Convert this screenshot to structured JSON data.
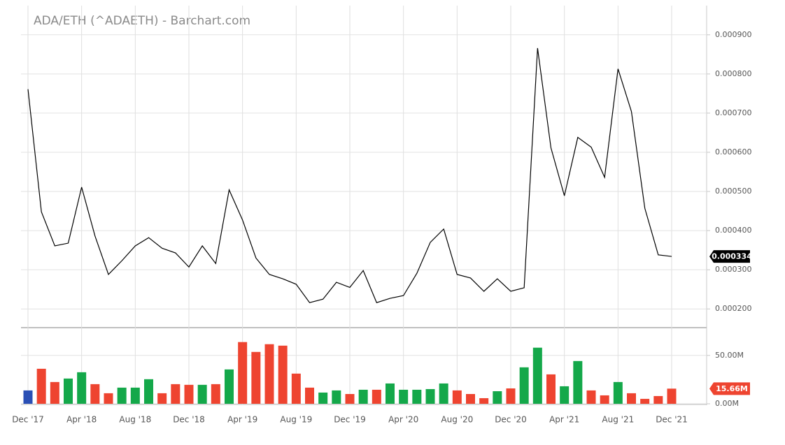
{
  "chart_data": [
    {
      "type": "line",
      "title": "ADA/ETH (^ADAETH) - Barchart.com",
      "color": "#000000",
      "grid": true,
      "values": [
        0.000761,
        0.000448,
        0.000361,
        0.000368,
        0.000511,
        0.000386,
        0.000288,
        0.000323,
        0.000361,
        0.000382,
        0.000355,
        0.000343,
        0.000307,
        0.000361,
        0.000316,
        0.000504,
        0.000427,
        0.00033,
        0.000288,
        0.000277,
        0.000263,
        0.000216,
        0.000225,
        0.000268,
        0.000255,
        0.000298,
        0.000216,
        0.000227,
        0.000234,
        0.000291,
        0.00037,
        0.000404,
        0.000288,
        0.000279,
        0.000245,
        0.000277,
        0.000245,
        0.000254,
        0.000866,
        0.000611,
        0.000489,
        0.000638,
        0.000613,
        0.000536,
        0.000813,
        0.000704,
        0.000457,
        0.000338,
        0.000334
      ],
      "ylim": [
        0.000154,
        0.000971
      ],
      "yticks": [
        {
          "value": 0.0002,
          "label": "0.000200"
        },
        {
          "value": 0.0003,
          "label": "0.000300"
        },
        {
          "value": 0.0004,
          "label": "0.000400"
        },
        {
          "value": 0.0005,
          "label": "0.000500"
        },
        {
          "value": 0.0006,
          "label": "0.000600"
        },
        {
          "value": 0.0007,
          "label": "0.000700"
        },
        {
          "value": 0.0008,
          "label": "0.000800"
        },
        {
          "value": 0.0009,
          "label": "0.000900"
        }
      ],
      "annotations": [
        {
          "value": 0.000334,
          "label": "0.000334",
          "color": "#000000"
        }
      ]
    },
    {
      "type": "bar",
      "grid": true,
      "categories": [
        "Dec '17",
        null,
        null,
        null,
        "Apr '18",
        null,
        null,
        null,
        "Aug '18",
        null,
        null,
        null,
        "Dec '18",
        null,
        null,
        null,
        "Apr '19",
        null,
        null,
        null,
        "Aug '19",
        null,
        null,
        null,
        "Dec '19",
        null,
        null,
        null,
        "Apr '20",
        null,
        null,
        null,
        "Aug '20",
        null,
        null,
        null,
        "Dec '20",
        null,
        null,
        null,
        "Apr '21",
        null,
        null,
        null,
        "Aug '21",
        null,
        null,
        null,
        "Dec '21"
      ],
      "values": [
        13.8,
        36.2,
        22.5,
        26.1,
        32.6,
        20.3,
        10.9,
        16.7,
        16.7,
        25.4,
        10.9,
        20.3,
        19.6,
        19.6,
        20.3,
        35.5,
        63.8,
        53.6,
        61.6,
        60.1,
        31.2,
        16.7,
        11.6,
        13.8,
        10.1,
        14.5,
        14.5,
        21.0,
        14.5,
        14.5,
        15.2,
        21.0,
        13.8,
        10.1,
        5.8,
        13.0,
        15.9,
        37.7,
        58.0,
        30.4,
        18.1,
        44.2,
        13.8,
        8.7,
        22.5,
        10.9,
        5.1,
        8.0,
        15.66
      ],
      "colors": [
        "#2a4fb5",
        "#ee4430",
        "#ee4430",
        "#14a84a",
        "#14a84a",
        "#ee4430",
        "#ee4430",
        "#14a84a",
        "#14a84a",
        "#14a84a",
        "#ee4430",
        "#ee4430",
        "#ee4430",
        "#14a84a",
        "#ee4430",
        "#14a84a",
        "#ee4430",
        "#ee4430",
        "#ee4430",
        "#ee4430",
        "#ee4430",
        "#ee4430",
        "#14a84a",
        "#14a84a",
        "#ee4430",
        "#14a84a",
        "#ee4430",
        "#14a84a",
        "#14a84a",
        "#14a84a",
        "#14a84a",
        "#14a84a",
        "#ee4430",
        "#ee4430",
        "#ee4430",
        "#14a84a",
        "#ee4430",
        "#14a84a",
        "#14a84a",
        "#ee4430",
        "#14a84a",
        "#14a84a",
        "#ee4430",
        "#ee4430",
        "#14a84a",
        "#ee4430",
        "#ee4430",
        "#ee4430",
        "#ee4430"
      ],
      "ylim": [
        0,
        78
      ],
      "yticks": [
        {
          "value": 0,
          "label": "0.00M"
        },
        {
          "value": 50,
          "label": "50.00M"
        }
      ],
      "annotations": [
        {
          "value": 15.66,
          "label": "15.66M",
          "color": "#ee4430"
        }
      ]
    }
  ]
}
